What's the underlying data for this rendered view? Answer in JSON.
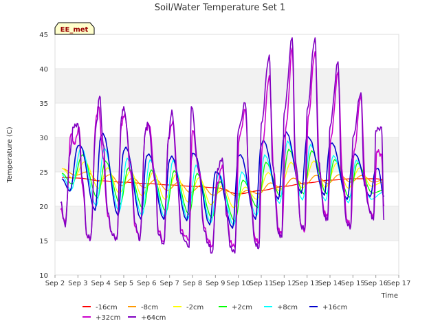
{
  "chart_data": {
    "type": "line",
    "title": "Soil/Water Temperature Set 1",
    "xlabel": "Time",
    "ylabel": "Temperature (C)",
    "site_label": "EE_met",
    "xlim": [
      2.0,
      17.0
    ],
    "ylim": [
      10,
      45
    ],
    "x_ticks": [
      {
        "v": 2,
        "label": "Sep 2"
      },
      {
        "v": 3,
        "label": "Sep 3"
      },
      {
        "v": 4,
        "label": "Sep 4"
      },
      {
        "v": 5,
        "label": "Sep 5"
      },
      {
        "v": 6,
        "label": "Sep 6"
      },
      {
        "v": 7,
        "label": "Sep 7"
      },
      {
        "v": 8,
        "label": "Sep 8"
      },
      {
        "v": 9,
        "label": "Sep 9"
      },
      {
        "v": 10,
        "label": "Sep 10"
      },
      {
        "v": 11,
        "label": "Sep 11"
      },
      {
        "v": 12,
        "label": "Sep 12"
      },
      {
        "v": 13,
        "label": "Sep 13"
      },
      {
        "v": 14,
        "label": "Sep 14"
      },
      {
        "v": 15,
        "label": "Sep 15"
      },
      {
        "v": 16,
        "label": "Sep 16"
      },
      {
        "v": 17,
        "label": "Sep 17"
      }
    ],
    "y_ticks": [
      10,
      15,
      20,
      25,
      30,
      35,
      40,
      45
    ],
    "grid_bands": "alternating horizontal bands",
    "legend_placement": "bottom",
    "series": [
      {
        "name": "-16cm",
        "color": "#ff0000",
        "x": [
          2.3,
          3.0,
          4.0,
          5.0,
          6.0,
          7.0,
          8.0,
          9.0,
          10.0,
          11.0,
          12.0,
          13.0,
          14.0,
          15.0,
          16.0,
          16.3
        ],
        "y": [
          24.2,
          24.1,
          23.7,
          23.5,
          23.3,
          23.1,
          22.9,
          22.7,
          21.8,
          22.3,
          22.9,
          23.4,
          23.8,
          24.0,
          24.0,
          23.9
        ]
      },
      {
        "name": "-8cm",
        "color": "#ff9900",
        "x": [
          2.3,
          2.9,
          3.4,
          3.9,
          4.4,
          4.9,
          5.4,
          5.9,
          6.4,
          6.9,
          7.4,
          7.9,
          8.4,
          8.9,
          9.4,
          9.9,
          10.4,
          10.9,
          11.4,
          11.9,
          12.4,
          12.9,
          13.4,
          13.9,
          14.4,
          14.9,
          15.4,
          15.9,
          16.3
        ],
        "y": [
          25.5,
          24.5,
          25.0,
          23.6,
          24.6,
          23.0,
          24.1,
          22.7,
          23.9,
          22.3,
          23.5,
          22.0,
          23.1,
          21.6,
          22.5,
          21.5,
          22.3,
          21.8,
          23.4,
          22.6,
          24.1,
          23.1,
          24.5,
          23.3,
          24.6,
          23.5,
          24.5,
          23.5,
          23.8
        ]
      },
      {
        "name": "-2cm",
        "color": "#ffff00",
        "x": [
          2.3,
          2.8,
          3.3,
          3.9,
          4.3,
          4.8,
          5.3,
          5.8,
          6.3,
          6.8,
          7.3,
          7.8,
          8.3,
          8.8,
          9.3,
          9.8,
          10.3,
          10.8,
          11.3,
          11.8,
          12.3,
          12.8,
          13.3,
          13.8,
          14.3,
          14.8,
          15.3,
          15.8,
          16.3
        ],
        "y": [
          25.5,
          24.0,
          26.5,
          22.6,
          25.6,
          21.9,
          25.1,
          21.5,
          25.0,
          21.0,
          24.7,
          20.6,
          24.2,
          20.2,
          23.0,
          19.8,
          22.8,
          21.0,
          24.9,
          22.2,
          26.4,
          22.6,
          26.6,
          22.7,
          26.3,
          22.6,
          25.6,
          22.9,
          23.5
        ]
      },
      {
        "name": "+2cm",
        "color": "#00ff00",
        "x": [
          2.3,
          2.75,
          3.2,
          3.85,
          4.2,
          4.85,
          5.2,
          5.85,
          6.2,
          6.85,
          7.2,
          7.85,
          8.2,
          8.85,
          9.2,
          9.85,
          10.2,
          10.85,
          11.2,
          11.85,
          12.2,
          12.85,
          13.2,
          13.85,
          14.2,
          14.85,
          15.2,
          15.85,
          16.3
        ],
        "y": [
          24.8,
          23.2,
          27.5,
          21.2,
          26.6,
          20.3,
          25.6,
          19.6,
          25.3,
          19.2,
          25.2,
          18.8,
          24.8,
          18.3,
          23.6,
          17.8,
          23.8,
          19.8,
          26.4,
          21.4,
          28.3,
          21.8,
          28.1,
          21.8,
          26.8,
          21.3,
          26.3,
          21.9,
          22.3
        ]
      },
      {
        "name": "+8cm",
        "color": "#00ffff",
        "x": [
          2.3,
          2.7,
          3.15,
          3.8,
          4.15,
          4.8,
          5.15,
          5.8,
          6.15,
          6.8,
          7.15,
          7.8,
          8.15,
          8.8,
          9.15,
          9.8,
          10.15,
          10.8,
          11.15,
          11.8,
          12.15,
          12.8,
          13.15,
          13.8,
          14.15,
          14.8,
          15.15,
          15.8,
          16.3
        ],
        "y": [
          24.6,
          22.3,
          28.6,
          20.0,
          28.5,
          19.2,
          27.0,
          18.6,
          26.8,
          18.3,
          26.7,
          18.1,
          26.0,
          17.6,
          24.8,
          17.2,
          25.0,
          18.6,
          27.5,
          20.4,
          29.5,
          20.9,
          29.0,
          20.8,
          27.4,
          20.5,
          26.7,
          21.0,
          22.0
        ]
      },
      {
        "name": "+16cm",
        "color": "#0000cc",
        "x": [
          2.3,
          2.65,
          3.0,
          3.1,
          3.75,
          4.0,
          4.1,
          4.75,
          5.0,
          5.1,
          5.75,
          6.0,
          6.1,
          6.75,
          7.0,
          7.1,
          7.75,
          8.0,
          8.1,
          8.75,
          9.0,
          9.1,
          9.75,
          10.0,
          10.1,
          10.75,
          11.0,
          11.1,
          11.75,
          12.0,
          12.1,
          12.75,
          13.0,
          13.1,
          13.75,
          14.0,
          14.1,
          14.75,
          15.0,
          15.1,
          15.75,
          16.0,
          16.1,
          16.35
        ],
        "y": [
          24.0,
          22.2,
          28.8,
          28.9,
          19.4,
          30.2,
          30.6,
          18.6,
          28.1,
          28.6,
          18.1,
          27.3,
          27.6,
          18.1,
          26.8,
          27.3,
          17.9,
          27.7,
          27.6,
          17.3,
          25.0,
          24.9,
          16.8,
          27.3,
          27.5,
          18.1,
          29.0,
          29.6,
          21.0,
          30.2,
          30.8,
          21.9,
          30.2,
          29.9,
          21.6,
          29.0,
          29.2,
          21.0,
          27.3,
          27.6,
          21.4,
          25.4,
          25.5,
          21.4
        ]
      },
      {
        "name": "+32cm",
        "color": "#cc00cc",
        "x": [
          2.25,
          2.45,
          2.7,
          2.85,
          3.05,
          3.2,
          3.4,
          3.55,
          3.8,
          3.9,
          4.1,
          4.3,
          4.5,
          4.7,
          4.9,
          5.05,
          5.3,
          5.5,
          5.7,
          5.95,
          6.1,
          6.4,
          6.5,
          6.75,
          6.95,
          7.15,
          7.35,
          7.5,
          7.85,
          8.0,
          8.3,
          8.5,
          8.7,
          8.85,
          9.1,
          9.3,
          9.5,
          9.65,
          9.85,
          10.05,
          10.3,
          10.5,
          10.75,
          10.9,
          11.05,
          11.35,
          11.55,
          11.75,
          11.9,
          12.1,
          12.35,
          12.5,
          12.75,
          12.9,
          13.05,
          13.35,
          13.55,
          13.75,
          13.9,
          14.05,
          14.35,
          14.55,
          14.75,
          14.9,
          15.05,
          15.35,
          15.55,
          15.75,
          15.9,
          16.05,
          16.25,
          16.35
        ],
        "y": [
          19.5,
          17.5,
          30.5,
          29.0,
          31.5,
          23.0,
          15.7,
          15.3,
          33.0,
          34.5,
          27.0,
          18.5,
          15.8,
          15.3,
          32.0,
          33.5,
          25.0,
          17.0,
          15.2,
          31.0,
          31.8,
          23.5,
          16.5,
          14.8,
          30.0,
          32.5,
          24.0,
          16.5,
          15.0,
          31.0,
          25.0,
          17.0,
          15.0,
          14.2,
          23.5,
          26.0,
          19.0,
          14.8,
          14.0,
          30.0,
          34.0,
          22.0,
          15.2,
          14.8,
          29.0,
          39.0,
          25.0,
          16.5,
          16.0,
          32.0,
          43.0,
          25.0,
          17.2,
          16.5,
          33.0,
          42.5,
          25.0,
          19.0,
          18.5,
          30.0,
          39.5,
          24.5,
          18.0,
          17.2,
          28.0,
          36.0,
          23.0,
          19.0,
          18.5,
          28.0,
          27.5,
          20.0
        ]
      },
      {
        "name": "+64cm",
        "color": "#8000c0",
        "x": [
          2.25,
          2.45,
          2.65,
          2.8,
          3.0,
          3.2,
          3.4,
          3.55,
          3.8,
          3.95,
          4.1,
          4.3,
          4.5,
          4.7,
          4.9,
          5.0,
          5.3,
          5.5,
          5.7,
          5.95,
          6.05,
          6.4,
          6.5,
          6.75,
          6.95,
          7.1,
          7.35,
          7.5,
          7.85,
          7.95,
          8.3,
          8.5,
          8.7,
          8.85,
          9.1,
          9.3,
          9.5,
          9.65,
          9.85,
          10.0,
          10.3,
          10.5,
          10.75,
          10.9,
          11.0,
          11.35,
          11.5,
          11.75,
          11.9,
          12.0,
          12.35,
          12.5,
          12.75,
          12.9,
          13.0,
          13.35,
          13.5,
          13.75,
          13.9,
          14.0,
          14.35,
          14.5,
          14.75,
          14.9,
          15.0,
          15.35,
          15.5,
          15.75,
          15.9,
          16.0,
          16.25,
          16.35
        ],
        "y": [
          20.5,
          17.0,
          27.5,
          31.5,
          32.0,
          24.0,
          15.8,
          15.3,
          32.0,
          36.0,
          29.0,
          19.0,
          15.8,
          15.2,
          33.0,
          34.5,
          26.5,
          17.5,
          15.0,
          31.0,
          32.0,
          23.0,
          16.0,
          14.5,
          30.0,
          34.0,
          23.5,
          16.0,
          14.0,
          34.5,
          24.5,
          16.5,
          14.5,
          13.2,
          25.5,
          27.0,
          18.5,
          14.0,
          13.2,
          31.0,
          35.0,
          21.5,
          14.5,
          14.0,
          32.0,
          42.0,
          26.0,
          16.0,
          15.5,
          33.5,
          44.5,
          26.5,
          17.0,
          16.8,
          34.0,
          44.5,
          26.5,
          18.5,
          18.0,
          31.5,
          41.0,
          24.5,
          17.5,
          17.0,
          30.0,
          36.5,
          23.0,
          19.0,
          18.0,
          31.0,
          31.5,
          18.0
        ]
      }
    ]
  }
}
